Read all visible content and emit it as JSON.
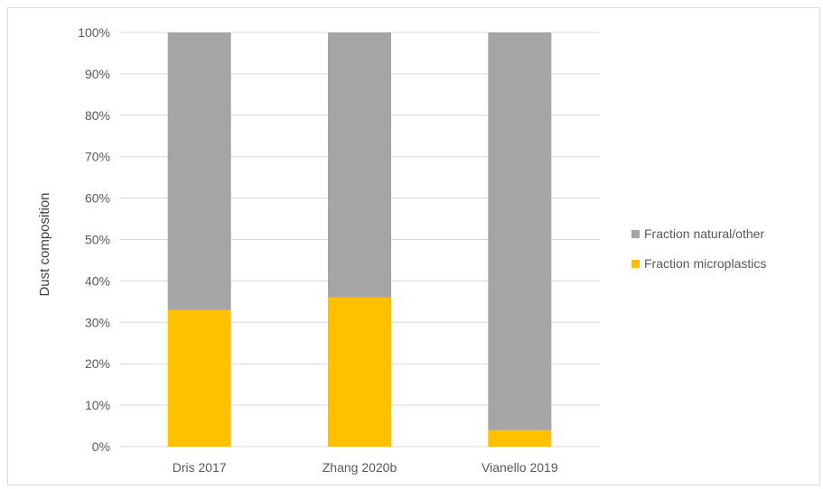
{
  "chart_data": {
    "type": "bar",
    "stacked": true,
    "normalized_percent": true,
    "title": "",
    "xlabel": "",
    "ylabel": "Dust composition",
    "categories": [
      "Dris 2017",
      "Zhang 2020b",
      "Vianello 2019"
    ],
    "series": [
      {
        "name": "Fraction microplastics",
        "values": [
          33,
          36,
          4
        ],
        "color": "#ffc000"
      },
      {
        "name": "Fraction natural/other",
        "values": [
          67,
          64,
          96
        ],
        "color": "#a5a5a5"
      }
    ],
    "ylim": [
      0,
      100
    ],
    "yticks": [
      "0%",
      "10%",
      "20%",
      "30%",
      "40%",
      "50%",
      "60%",
      "70%",
      "80%",
      "90%",
      "100%"
    ],
    "grid": true,
    "legend_position": "right",
    "legend_order": [
      "Fraction natural/other",
      "Fraction microplastics"
    ]
  }
}
